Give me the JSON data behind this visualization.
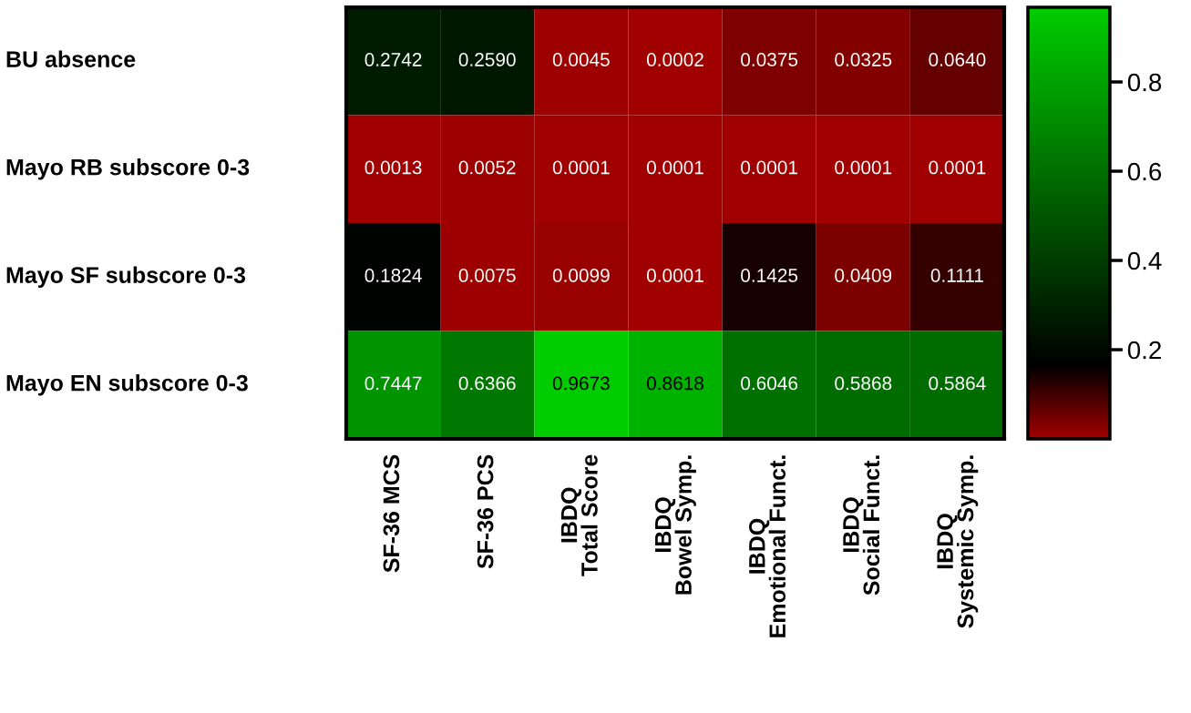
{
  "chart_data": {
    "type": "heatmap",
    "categories": [
      "SF-36 MCS",
      "SF-36 PCS",
      "IBDQ\nTotal Score",
      "IBDQ\nBowel Symp.",
      "IBDQ\nEmotional Funct.",
      "IBDQ\nSocial Funct.",
      "IBDQ\nSystemic Symp."
    ],
    "y_categories": [
      "BU absence",
      "Mayo RB subscore 0-3",
      "Mayo SF subscore 0-3",
      "Mayo EN subscore 0-3"
    ],
    "cells": [
      [
        0.2742,
        0.259,
        0.0045,
        0.0002,
        0.0375,
        0.0325,
        0.064
      ],
      [
        0.0013,
        0.0052,
        0.0001,
        0.0001,
        0.0001,
        0.0001,
        0.0001
      ],
      [
        0.1824,
        0.0075,
        0.0099,
        0.0001,
        0.1425,
        0.0409,
        0.1111
      ],
      [
        0.7447,
        0.6366,
        0.9673,
        0.8618,
        0.6046,
        0.5868,
        0.5864
      ]
    ],
    "cell_labels": [
      [
        "0.2742",
        "0.2590",
        "0.0045",
        "0.0002",
        "0.0375",
        "0.0325",
        "0.0640"
      ],
      [
        "0.0013",
        "0.0052",
        "0.0001",
        "0.0001",
        "0.0001",
        "0.0001",
        "0.0001"
      ],
      [
        "0.1824",
        "0.0075",
        "0.0099",
        "0.0001",
        "0.1425",
        "0.0409",
        "0.1111"
      ],
      [
        "0.7447",
        "0.6366",
        "0.9673",
        "0.8618",
        "0.6046",
        "0.5868",
        "0.5864"
      ]
    ],
    "clim": [
      0.0001,
      0.9673
    ],
    "cticks": [
      0.2,
      0.4,
      0.6,
      0.8
    ]
  }
}
